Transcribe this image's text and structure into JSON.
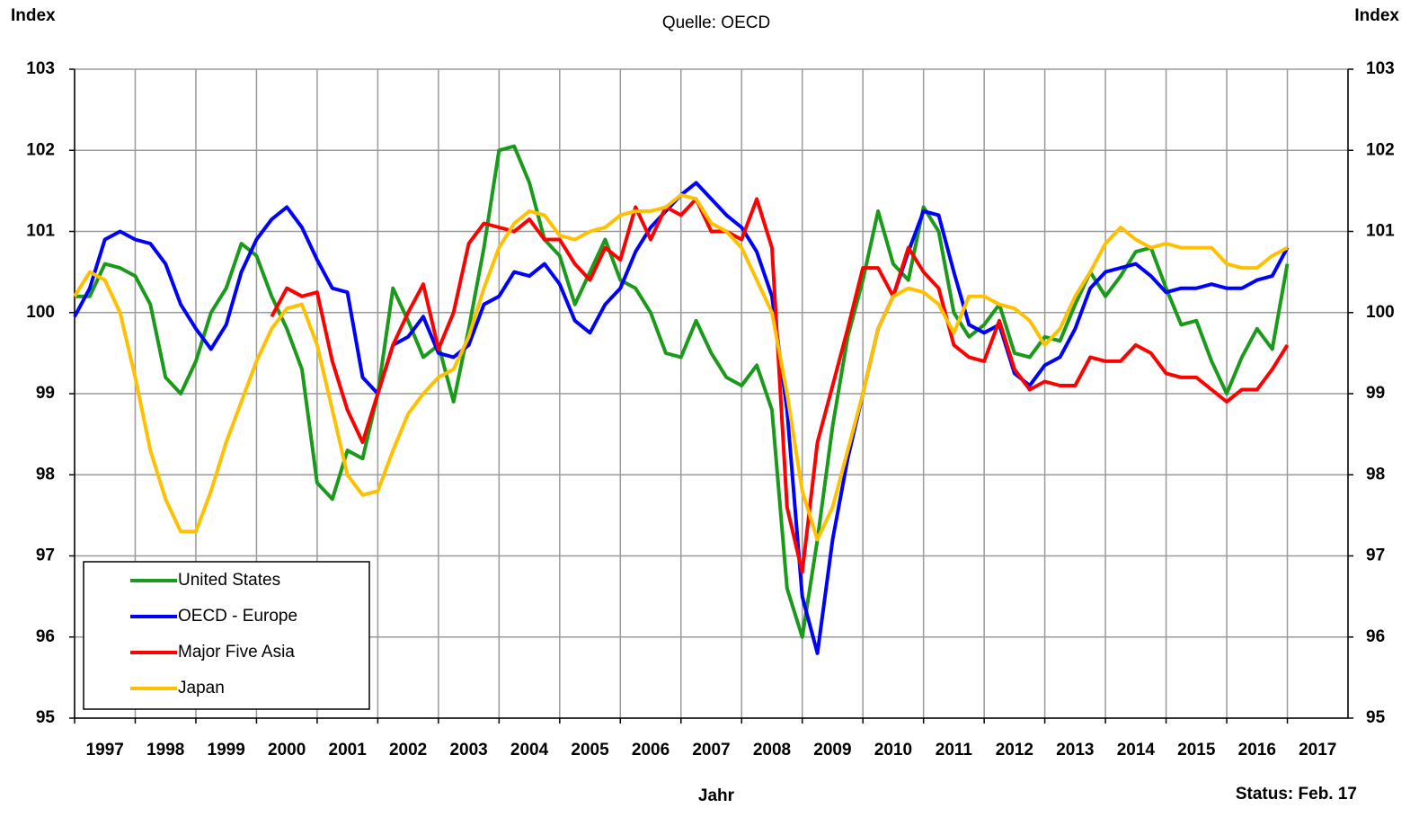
{
  "chart_data": {
    "type": "line",
    "title": "Quelle: OECD",
    "ylabel": "Index",
    "y2label": "Index",
    "xlabel": "Jahr",
    "note": "Status: Feb. 17",
    "x": [
      1997,
      1997.25,
      1997.5,
      1997.75,
      1998,
      1998.25,
      1998.5,
      1998.75,
      1999,
      1999.25,
      1999.5,
      1999.75,
      2000,
      2000.25,
      2000.5,
      2000.75,
      2001,
      2001.25,
      2001.5,
      2001.75,
      2002,
      2002.25,
      2002.5,
      2002.75,
      2003,
      2003.25,
      2003.5,
      2003.75,
      2004,
      2004.25,
      2004.5,
      2004.75,
      2005,
      2005.25,
      2005.5,
      2005.75,
      2006,
      2006.25,
      2006.5,
      2006.75,
      2007,
      2007.25,
      2007.5,
      2007.75,
      2008,
      2008.25,
      2008.5,
      2008.75,
      2009,
      2009.25,
      2009.5,
      2009.75,
      2010,
      2010.25,
      2010.5,
      2010.75,
      2011,
      2011.25,
      2011.5,
      2011.75,
      2012,
      2012.25,
      2012.5,
      2012.75,
      2013,
      2013.25,
      2013.5,
      2013.75,
      2014,
      2014.25,
      2014.5,
      2014.75,
      2015,
      2015.25,
      2015.5,
      2015.75,
      2016,
      2016.25,
      2016.5,
      2016.75,
      2017
    ],
    "series": [
      {
        "name": "United States",
        "color": "#1a9a1a",
        "values": [
          100.2,
          100.2,
          100.6,
          100.55,
          100.45,
          100.1,
          99.2,
          99.0,
          99.4,
          100.0,
          100.3,
          100.85,
          100.7,
          100.2,
          99.8,
          99.3,
          97.9,
          97.7,
          98.3,
          98.2,
          99.0,
          100.3,
          99.9,
          99.45,
          99.6,
          98.9,
          99.8,
          100.8,
          102.0,
          102.05,
          101.6,
          100.9,
          100.7,
          100.1,
          100.5,
          100.9,
          100.4,
          100.3,
          100.0,
          99.5,
          99.45,
          99.9,
          99.5,
          99.2,
          99.1,
          99.35,
          98.8,
          96.6,
          96.0,
          97.2,
          98.6,
          99.7,
          100.4,
          101.25,
          100.6,
          100.4,
          101.3,
          101.0,
          100.0,
          99.7,
          99.85,
          100.1,
          99.5,
          99.45,
          99.7,
          99.65,
          100.1,
          100.5,
          100.2,
          100.45,
          100.75,
          100.8,
          100.3,
          99.85,
          99.9,
          99.4,
          99.0,
          99.45,
          99.8,
          99.55,
          100.6
        ]
      },
      {
        "name": "OECD - Europe",
        "color": "#0000ff",
        "values": [
          99.95,
          100.3,
          100.9,
          101.0,
          100.9,
          100.85,
          100.6,
          100.1,
          99.8,
          99.55,
          99.85,
          100.5,
          100.9,
          101.15,
          101.3,
          101.05,
          100.65,
          100.3,
          100.25,
          99.2,
          99.0,
          99.6,
          99.7,
          99.95,
          99.5,
          99.45,
          99.6,
          100.1,
          100.2,
          100.5,
          100.45,
          100.6,
          100.35,
          99.9,
          99.75,
          100.1,
          100.3,
          100.75,
          101.05,
          101.25,
          101.45,
          101.6,
          101.4,
          101.2,
          101.05,
          100.75,
          100.2,
          98.8,
          96.5,
          95.8,
          97.2,
          98.2,
          99.0,
          99.8,
          100.2,
          100.75,
          101.25,
          101.2,
          100.5,
          99.85,
          99.75,
          99.85,
          99.25,
          99.1,
          99.35,
          99.45,
          99.8,
          100.3,
          100.5,
          100.55,
          100.6,
          100.45,
          100.25,
          100.3,
          100.3,
          100.35,
          100.3,
          100.3,
          100.4,
          100.45,
          100.8
        ]
      },
      {
        "name": "Major Five Asia",
        "color": "#ff0000",
        "values": [
          null,
          null,
          null,
          null,
          null,
          null,
          null,
          null,
          null,
          null,
          null,
          null,
          null,
          99.95,
          100.3,
          100.2,
          100.25,
          99.4,
          98.8,
          98.4,
          99.0,
          99.6,
          100.0,
          100.35,
          99.55,
          100.0,
          100.85,
          101.1,
          101.05,
          101.0,
          101.15,
          100.9,
          100.9,
          100.6,
          100.4,
          100.8,
          100.65,
          101.3,
          100.9,
          101.3,
          101.2,
          101.4,
          101.0,
          101.0,
          100.9,
          101.4,
          100.8,
          97.6,
          96.8,
          98.4,
          99.1,
          99.8,
          100.55,
          100.55,
          100.2,
          100.8,
          100.5,
          100.3,
          99.6,
          99.45,
          99.4,
          99.9,
          99.3,
          99.05,
          99.15,
          99.1,
          99.1,
          99.45,
          99.4,
          99.4,
          99.6,
          99.5,
          99.25,
          99.2,
          99.2,
          99.05,
          98.9,
          99.05,
          99.05,
          99.3,
          99.6
        ]
      },
      {
        "name": "Japan",
        "color": "#ffc000",
        "values": [
          100.2,
          100.5,
          100.4,
          100.0,
          99.2,
          98.3,
          97.7,
          97.3,
          97.3,
          97.8,
          98.4,
          98.9,
          99.4,
          99.8,
          100.05,
          100.1,
          99.6,
          98.8,
          98.0,
          97.75,
          97.8,
          98.3,
          98.75,
          99.0,
          99.2,
          99.3,
          99.7,
          100.3,
          100.8,
          101.1,
          101.25,
          101.2,
          100.95,
          100.9,
          101.0,
          101.05,
          101.2,
          101.25,
          101.25,
          101.3,
          101.45,
          101.4,
          101.1,
          101.0,
          100.8,
          100.4,
          100.0,
          99.0,
          97.8,
          97.2,
          97.6,
          98.3,
          99.0,
          99.8,
          100.2,
          100.3,
          100.25,
          100.1,
          99.75,
          100.2,
          100.2,
          100.1,
          100.05,
          99.9,
          99.6,
          99.8,
          100.2,
          100.5,
          100.85,
          101.05,
          100.9,
          100.8,
          100.85,
          100.8,
          100.8,
          100.8,
          100.6,
          100.55,
          100.55,
          100.7,
          100.8
        ]
      }
    ],
    "xlim": [
      1997,
      2018
    ],
    "xticks": [
      1997,
      1998,
      1999,
      2000,
      2001,
      2002,
      2003,
      2004,
      2005,
      2006,
      2007,
      2008,
      2009,
      2010,
      2011,
      2012,
      2013,
      2014,
      2015,
      2016,
      2017
    ],
    "ylim": [
      95,
      103
    ],
    "yticks": [
      95,
      96,
      97,
      98,
      99,
      100,
      101,
      102,
      103
    ],
    "y2lim": [
      95,
      103
    ],
    "y2ticks": [
      95,
      96,
      97,
      98,
      99,
      100,
      101,
      102,
      103
    ],
    "grid": true,
    "legend": "lower left"
  }
}
